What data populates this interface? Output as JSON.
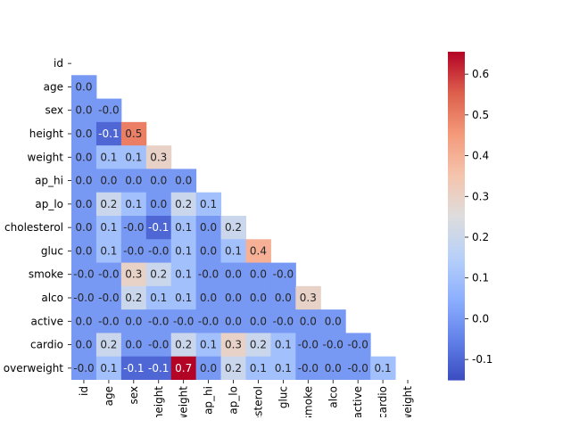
{
  "chart_data": {
    "type": "heatmap",
    "title": "",
    "labels": [
      "id",
      "age",
      "sex",
      "height",
      "weight",
      "ap_hi",
      "ap_lo",
      "cholesterol",
      "gluc",
      "smoke",
      "alco",
      "active",
      "cardio",
      "overweight"
    ],
    "rows": [
      {
        "label": "id",
        "values": []
      },
      {
        "label": "age",
        "values": [
          "0.0"
        ]
      },
      {
        "label": "sex",
        "values": [
          "0.0",
          "-0.0"
        ]
      },
      {
        "label": "height",
        "values": [
          "0.0",
          "-0.1",
          "0.5"
        ]
      },
      {
        "label": "weight",
        "values": [
          "0.0",
          "0.1",
          "0.1",
          "0.3"
        ]
      },
      {
        "label": "ap_hi",
        "values": [
          "0.0",
          "0.0",
          "0.0",
          "0.0",
          "0.0"
        ]
      },
      {
        "label": "ap_lo",
        "values": [
          "0.0",
          "0.2",
          "0.1",
          "0.0",
          "0.2",
          "0.1"
        ]
      },
      {
        "label": "cholesterol",
        "values": [
          "0.0",
          "0.1",
          "-0.0",
          "-0.1",
          "0.1",
          "0.0",
          "0.2"
        ]
      },
      {
        "label": "gluc",
        "values": [
          "0.0",
          "0.1",
          "-0.0",
          "-0.0",
          "0.1",
          "0.0",
          "0.1",
          "0.4"
        ]
      },
      {
        "label": "smoke",
        "values": [
          "-0.0",
          "-0.0",
          "0.3",
          "0.2",
          "0.1",
          "-0.0",
          "0.0",
          "0.0",
          "-0.0"
        ]
      },
      {
        "label": "alco",
        "values": [
          "-0.0",
          "-0.0",
          "0.2",
          "0.1",
          "0.1",
          "0.0",
          "0.0",
          "0.0",
          "0.0",
          "0.3"
        ]
      },
      {
        "label": "active",
        "values": [
          "0.0",
          "-0.0",
          "0.0",
          "-0.0",
          "-0.0",
          "-0.0",
          "0.0",
          "0.0",
          "-0.0",
          "0.0",
          "0.0"
        ]
      },
      {
        "label": "cardio",
        "values": [
          "0.0",
          "0.2",
          "0.0",
          "-0.0",
          "0.2",
          "0.1",
          "0.3",
          "0.2",
          "0.1",
          "-0.0",
          "-0.0",
          "-0.0"
        ]
      },
      {
        "label": "overweight",
        "values": [
          "-0.0",
          "0.1",
          "-0.1",
          "-0.1",
          "0.7",
          "0.0",
          "0.2",
          "0.1",
          "0.1",
          "-0.0",
          "0.0",
          "-0.0",
          "0.1"
        ]
      }
    ],
    "colormap": "coolwarm",
    "vmin": -0.15,
    "vmax": 0.655,
    "colorbar_ticks": [
      "-0.1",
      "0.0",
      "0.1",
      "0.2",
      "0.3",
      "0.4",
      "0.5",
      "0.6"
    ],
    "mask": "upper-triangle-and-diagonal",
    "grid": false,
    "colors": {
      "cold": "#3b4cc0",
      "neutral": "#dddddd",
      "hot": "#b40426"
    }
  }
}
